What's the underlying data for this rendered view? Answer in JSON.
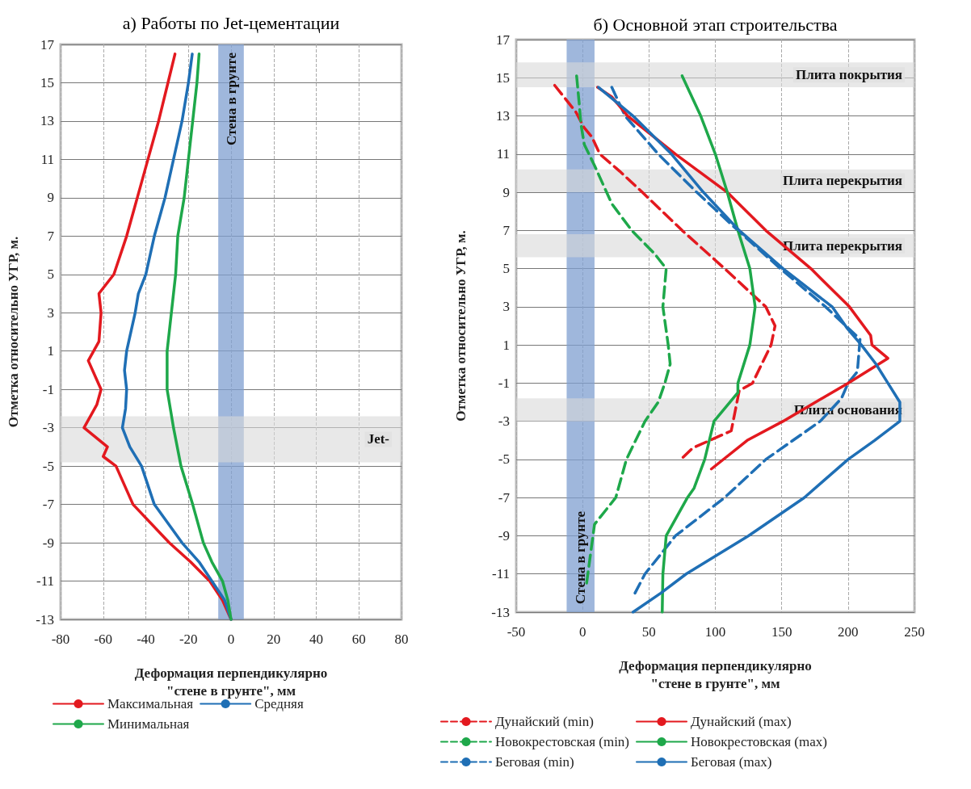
{
  "chart_data": [
    {
      "type": "line",
      "title": "а) Работы по Jet-цементации",
      "xlabel": "Деформация перпендикулярно\n\"стене в грунте\", мм",
      "ylabel": "Отметка относительно УГР, м.",
      "xlim": [
        -80,
        80
      ],
      "xticks": [
        -80,
        -60,
        -40,
        -20,
        0,
        20,
        40,
        60,
        80
      ],
      "ylim": [
        -13,
        17
      ],
      "yticks": [
        -13,
        -11,
        -9,
        -7,
        -5,
        -3,
        -1,
        1,
        3,
        5,
        7,
        9,
        11,
        13,
        15,
        17
      ],
      "grid": true,
      "legend": "bottom",
      "marker": "none",
      "series": [
        {
          "name": "Максимальная",
          "color": "#e3191f",
          "x": [
            -26.3,
            -29.6,
            -34,
            -39,
            -44,
            -49,
            -55,
            -62,
            -61,
            -62,
            -67,
            -61,
            -63,
            -69,
            -58,
            -60,
            -54,
            -46,
            -29,
            -19,
            -10,
            -4,
            0
          ],
          "values": [
            16.5,
            15,
            13,
            11,
            9,
            7,
            5,
            4,
            3,
            1.5,
            0.5,
            -1,
            -1.8,
            -3,
            -4,
            -4.5,
            -5,
            -7,
            -9,
            -10,
            -11,
            -12,
            -13
          ]
        },
        {
          "name": "Средняя",
          "color": "#1f6fb5",
          "x": [
            -18.2,
            -20,
            -23,
            -27,
            -31,
            -36,
            -40,
            -43.5,
            -45,
            -49,
            -50,
            -49,
            -49.5,
            -51,
            -47.5,
            -42,
            -36,
            -23,
            -15,
            -9,
            -3,
            0
          ],
          "values": [
            16.5,
            15,
            13,
            11,
            9,
            7,
            5,
            4,
            3,
            1,
            0,
            -1,
            -2,
            -3,
            -4,
            -5,
            -7,
            -9,
            -10,
            -11,
            -12,
            -13
          ]
        },
        {
          "name": "Минимальная",
          "color": "#1ea84a",
          "x": [
            -15,
            -16,
            -18,
            -20,
            -22,
            -25,
            -26,
            -28,
            -30,
            -30,
            -30,
            -27,
            -23.5,
            -18,
            -13,
            -9,
            -4,
            -1.5,
            0
          ],
          "values": [
            16.5,
            15,
            13,
            11,
            9,
            7,
            5,
            3,
            1,
            0,
            -1,
            -3,
            -5,
            -7,
            -9,
            -10,
            -11,
            -12,
            -13
          ]
        }
      ],
      "bands": [
        {
          "axis": "x",
          "from": -6,
          "to": 6,
          "label": "Стена в грунте",
          "color": "#7f9fd0"
        },
        {
          "axis": "y",
          "from": -4.8,
          "to": -2.4,
          "label": "Jet-",
          "color": "#d9d9d9"
        }
      ]
    },
    {
      "type": "line",
      "title": "б) Основной этап строительства",
      "xlabel": "Деформация перпендикулярно\n\"стене в грунте\", мм",
      "ylabel": "Отметка относительно УГР, м.",
      "xlim": [
        -50,
        250
      ],
      "xticks": [
        -50,
        0,
        50,
        100,
        150,
        200,
        250
      ],
      "ylim": [
        -13,
        17
      ],
      "yticks": [
        -13,
        -11,
        -9,
        -7,
        -5,
        -3,
        -1,
        1,
        3,
        5,
        7,
        9,
        11,
        13,
        15,
        17
      ],
      "grid": true,
      "legend": "bottom",
      "marker": "none",
      "series": [
        {
          "name": "Дунайский (min)",
          "color": "#e3191f",
          "line_style": "dashed",
          "x": [
            -21,
            -5,
            1,
            7,
            13,
            28,
            45,
            75,
            107,
            138,
            145,
            142,
            128,
            118,
            112,
            83,
            74
          ],
          "values": [
            14.6,
            13.2,
            12.4,
            11.9,
            11,
            10.1,
            9,
            7,
            5,
            3,
            2,
            1,
            -1,
            -1.4,
            -3.5,
            -4.4,
            -5
          ]
        },
        {
          "name": "Новокрестовская (min)",
          "color": "#1ea84a",
          "line_style": "dashed",
          "x": [
            -4.5,
            -2.6,
            -1.3,
            1.3,
            9,
            22,
            37,
            54,
            63,
            60.5,
            64.5,
            66,
            62,
            57,
            47,
            33,
            25,
            17,
            9,
            3
          ],
          "values": [
            15.1,
            13.7,
            12.6,
            11.5,
            10.4,
            8.4,
            7,
            5.8,
            5,
            3,
            1,
            0,
            -1,
            -2,
            -3,
            -5,
            -7,
            -7.7,
            -8.4,
            -11.5
          ]
        },
        {
          "name": "Беговая (min)",
          "color": "#1f6fb5",
          "line_style": "dashed",
          "x": [
            22,
            32,
            57,
            86,
            117,
            149,
            183,
            209,
            207,
            200,
            195,
            179,
            138,
            107,
            70,
            47,
            39.5
          ],
          "values": [
            14.5,
            13,
            11,
            9,
            7,
            5,
            3,
            1.3,
            -0.4,
            -1,
            -1.8,
            -3,
            -5,
            -7,
            -9,
            -11,
            -12
          ]
        },
        {
          "name": "Дунайский (max)",
          "color": "#e3191f",
          "line_style": "solid",
          "x": [
            11.3,
            22,
            34,
            70,
            109,
            138,
            172,
            201,
            217,
            218,
            230,
            200,
            151,
            124,
            97
          ],
          "values": [
            14.5,
            14,
            13,
            11,
            9,
            7,
            5,
            3,
            1.5,
            1,
            0.3,
            -1,
            -3,
            -4,
            -5.5
          ]
        },
        {
          "name": "Новокрестовская (max)",
          "color": "#1ea84a",
          "line_style": "solid",
          "x": [
            75,
            89,
            100,
            109,
            117,
            126,
            130,
            126,
            117,
            117,
            99,
            92,
            84,
            79,
            63,
            60.5,
            60
          ],
          "values": [
            15.1,
            13,
            11,
            9,
            7,
            5,
            3,
            1,
            -1,
            -1.5,
            -3,
            -5,
            -6.5,
            -7,
            -9,
            -11,
            -13
          ]
        },
        {
          "name": "Беговая (max)",
          "color": "#1f6fb5",
          "line_style": "solid",
          "x": [
            12,
            38,
            67,
            91,
            118,
            151,
            188,
            199,
            210,
            221,
            230,
            239,
            239,
            220,
            200,
            167,
            125,
            78,
            59,
            38
          ],
          "values": [
            14.5,
            13,
            11,
            9,
            7,
            5,
            3,
            1.9,
            1,
            0,
            -1,
            -2,
            -3,
            -4,
            -5,
            -7,
            -9,
            -11,
            -12,
            -13
          ]
        }
      ],
      "bands": [
        {
          "axis": "x",
          "from": -12,
          "to": 9,
          "label": "Стена в грунте",
          "color": "#7f9fd0"
        },
        {
          "axis": "y",
          "from": 14.5,
          "to": 15.8,
          "label": "Плита покрытия",
          "color": "#d9d9d9"
        },
        {
          "axis": "y",
          "from": 9,
          "to": 10.2,
          "label": "Плита перекрытия",
          "color": "#d9d9d9"
        },
        {
          "axis": "y",
          "from": 5.6,
          "to": 6.8,
          "label": "Плита перекрытия",
          "color": "#d9d9d9"
        },
        {
          "axis": "y",
          "from": -3,
          "to": -1.8,
          "label": "Плита основания",
          "color": "#d9d9d9"
        }
      ]
    }
  ]
}
